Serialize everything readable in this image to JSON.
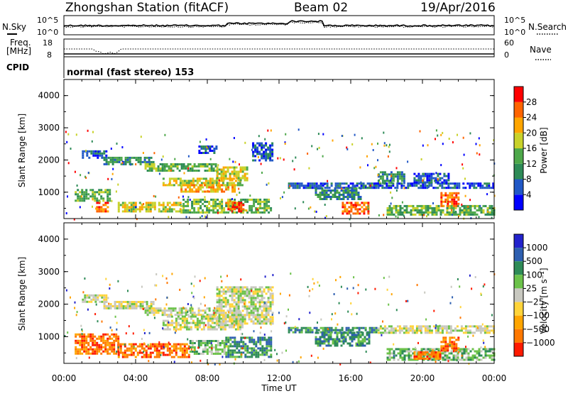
{
  "header": {
    "station": "Zhongshan Station (fitACF)",
    "beam": "Beam 02",
    "date": "19/Apr/2016"
  },
  "sky_panel": {
    "left_label": "N.Sky",
    "right_label": "N.Search",
    "left_ticks": [
      "10^5",
      "10^0"
    ],
    "right_ticks": [
      "10^5",
      "10^0"
    ]
  },
  "freq_panel": {
    "left_label_1": "Freq.",
    "left_label_2": "[MHz]",
    "right_label": "Nave",
    "left_ticks": [
      "18",
      "8"
    ],
    "right_ticks": [
      "60",
      "0"
    ]
  },
  "cpid": {
    "label": "CPID",
    "mode": "normal (fast stereo) 153"
  },
  "chart_data": [
    {
      "type": "heatmap",
      "name": "power",
      "ylabel": "Slant Range [km]",
      "ylim": [
        180,
        4500
      ],
      "yticks": [
        "1000",
        "2000",
        "3000",
        "4000"
      ],
      "x_range_hours": [
        0,
        24
      ],
      "colorbar_label": "Power [dB]",
      "colorbar_ticks": [
        "4",
        "8",
        "12",
        "16",
        "20",
        "24",
        "28"
      ],
      "colorbar_colors": [
        "#0000ff",
        "#2158c6",
        "#2e8b57",
        "#4ea84a",
        "#c9d22a",
        "#ffa500",
        "#ff6400",
        "#ff0000"
      ],
      "echo_regions": [
        {
          "t0": 1.0,
          "t1": 2.4,
          "r0": 2100,
          "r1": 2300,
          "level": 1
        },
        {
          "t0": 2.2,
          "t1": 5.0,
          "r0": 1900,
          "r1": 2100,
          "level": 2
        },
        {
          "t0": 4.5,
          "t1": 8.5,
          "r0": 1650,
          "r1": 1900,
          "level": 3
        },
        {
          "t0": 5.5,
          "t1": 10.0,
          "r0": 1200,
          "r1": 1450,
          "level": 4
        },
        {
          "t0": 6.5,
          "t1": 9.5,
          "r0": 1000,
          "r1": 1250,
          "level": 5
        },
        {
          "t0": 8.5,
          "t1": 10.2,
          "r0": 1400,
          "r1": 1800,
          "level": 4
        },
        {
          "t0": 7.5,
          "t1": 8.5,
          "r0": 2200,
          "r1": 2450,
          "level": 1
        },
        {
          "t0": 10.5,
          "t1": 11.6,
          "r0": 2000,
          "r1": 2550,
          "level": 1
        },
        {
          "t0": 0.6,
          "t1": 2.6,
          "r0": 750,
          "r1": 1100,
          "level": 3
        },
        {
          "t0": 1.8,
          "t1": 2.4,
          "r0": 400,
          "r1": 700,
          "level": 6
        },
        {
          "t0": 3.0,
          "t1": 6.5,
          "r0": 400,
          "r1": 700,
          "level": 4
        },
        {
          "t0": 6.5,
          "t1": 11.5,
          "r0": 350,
          "r1": 800,
          "level": 3
        },
        {
          "t0": 9.0,
          "t1": 10.0,
          "r0": 400,
          "r1": 700,
          "level": 6
        },
        {
          "t0": 12.5,
          "t1": 17.5,
          "r0": 1150,
          "r1": 1300,
          "level": 1
        },
        {
          "t0": 14.0,
          "t1": 16.5,
          "r0": 800,
          "r1": 1150,
          "level": 2
        },
        {
          "t0": 15.5,
          "t1": 17.0,
          "r0": 350,
          "r1": 700,
          "level": 6
        },
        {
          "t0": 17.5,
          "t1": 19.0,
          "r0": 1300,
          "r1": 1650,
          "level": 2
        },
        {
          "t0": 17.0,
          "t1": 24.0,
          "r0": 1150,
          "r1": 1300,
          "level": 1
        },
        {
          "t0": 19.5,
          "t1": 21.5,
          "r0": 1300,
          "r1": 1600,
          "level": 1
        },
        {
          "t0": 18.0,
          "t1": 24.0,
          "r0": 300,
          "r1": 600,
          "level": 3
        },
        {
          "t0": 21.0,
          "t1": 22.0,
          "r0": 600,
          "r1": 1000,
          "level": 6
        }
      ]
    },
    {
      "type": "heatmap",
      "name": "velocity",
      "ylabel": "Slant Range [km]",
      "ylim": [
        180,
        4500
      ],
      "yticks": [
        "1000",
        "2000",
        "3000",
        "4000"
      ],
      "x_range_hours": [
        0,
        24
      ],
      "xticks": [
        "00:00",
        "04:00",
        "08:00",
        "12:00",
        "16:00",
        "20:00",
        "00:00"
      ],
      "xlabel": "Time UT",
      "colorbar_label": "Velocity [m s⁻¹]",
      "colorbar_ticks": [
        "1000",
        "500",
        "100",
        "25",
        "−25",
        "−100",
        "−500",
        "−1000"
      ],
      "colorbar_colors": [
        "#2222cc",
        "#2e5fb0",
        "#2e8b57",
        "#6cc24a",
        "#c8c8c0",
        "#ffd43a",
        "#ffa500",
        "#ff7800",
        "#ff1a00"
      ],
      "echo_regions": [
        {
          "t0": 1.0,
          "t1": 2.4,
          "r0": 2100,
          "r1": 2300,
          "level": 4
        },
        {
          "t0": 2.2,
          "t1": 5.0,
          "r0": 1900,
          "r1": 2100,
          "level": 4
        },
        {
          "t0": 4.5,
          "t1": 8.5,
          "r0": 1650,
          "r1": 1900,
          "level": 4
        },
        {
          "t0": 5.5,
          "t1": 10.0,
          "r0": 1200,
          "r1": 1650,
          "level": 4
        },
        {
          "t0": 8.5,
          "t1": 11.6,
          "r0": 1400,
          "r1": 2550,
          "level": 4
        },
        {
          "t0": 0.6,
          "t1": 3.0,
          "r0": 500,
          "r1": 1100,
          "level": 7
        },
        {
          "t0": 3.0,
          "t1": 7.0,
          "r0": 400,
          "r1": 800,
          "level": 7
        },
        {
          "t0": 7.0,
          "t1": 9.0,
          "r0": 500,
          "r1": 900,
          "level": 3
        },
        {
          "t0": 9.0,
          "t1": 11.5,
          "r0": 350,
          "r1": 1000,
          "level": 2
        },
        {
          "t0": 12.5,
          "t1": 17.5,
          "r0": 1150,
          "r1": 1300,
          "level": 2
        },
        {
          "t0": 14.0,
          "t1": 17.0,
          "r0": 700,
          "r1": 1150,
          "level": 2
        },
        {
          "t0": 17.5,
          "t1": 24.0,
          "r0": 1150,
          "r1": 1350,
          "level": 4
        },
        {
          "t0": 18.0,
          "t1": 24.0,
          "r0": 300,
          "r1": 650,
          "level": 3
        },
        {
          "t0": 19.5,
          "t1": 21.0,
          "r0": 300,
          "r1": 550,
          "level": 7
        },
        {
          "t0": 21.0,
          "t1": 22.0,
          "r0": 600,
          "r1": 1000,
          "level": 7
        }
      ]
    }
  ]
}
